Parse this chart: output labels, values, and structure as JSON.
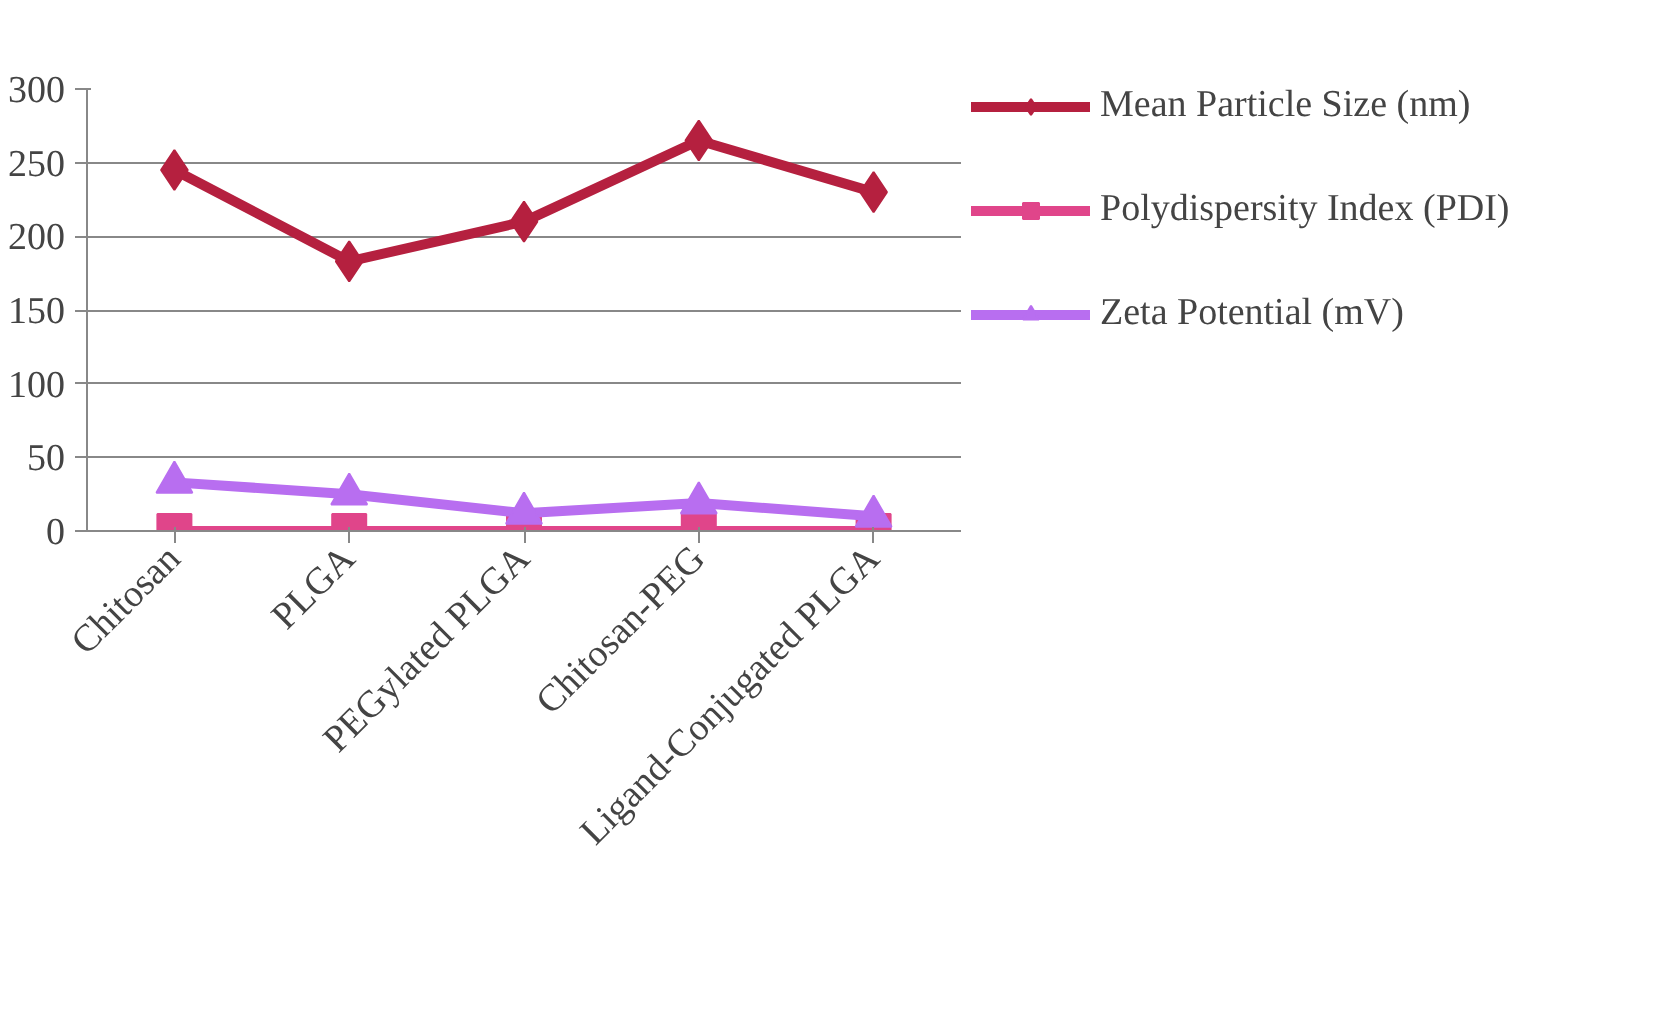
{
  "chart_data": {
    "type": "line",
    "categories": [
      "Chitosan",
      "PLGA",
      "PEGylated PLGA",
      "Chitosan-PEG",
      "Ligand-Conjugated PLGA"
    ],
    "series": [
      {
        "name": "Mean Particle Size (nm)",
        "color": "#b5203f",
        "values": [
          245,
          183,
          210,
          265,
          230
        ],
        "marker": "diamond"
      },
      {
        "name": "Polydispersity Index (PDI)",
        "color": "#e0458a",
        "values": [
          0,
          0,
          0,
          0,
          0
        ],
        "marker": "square"
      },
      {
        "name": "Zeta Potential (mV)",
        "color": "#b86ef0",
        "values": [
          33,
          25,
          12,
          19,
          10
        ],
        "marker": "triangle"
      }
    ],
    "ylim": [
      0,
      300
    ],
    "yticks": [
      0,
      50,
      100,
      150,
      200,
      250,
      300
    ],
    "grid": "y",
    "legend": "right"
  }
}
